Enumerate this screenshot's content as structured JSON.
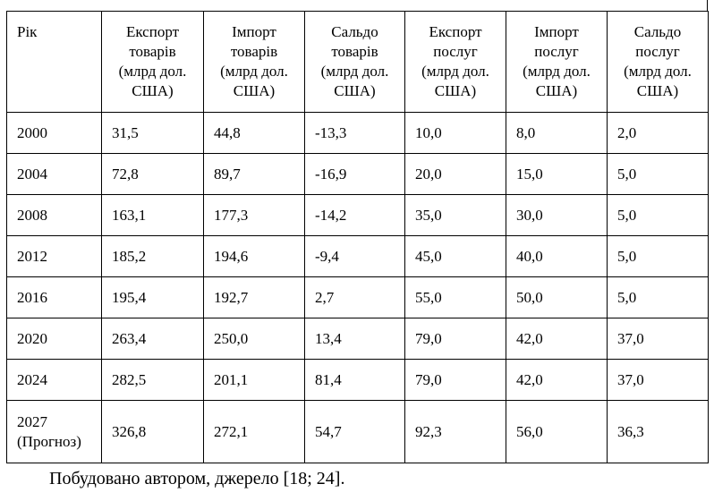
{
  "table": {
    "header": [
      "Рік",
      "Експорт\nтоварів\n(млрд дол.\nСША)",
      "Імпорт\nтоварів\n(млрд дол.\nСША)",
      "Сальдо\nтоварів\n(млрд дол.\nСША)",
      "Експорт\nпослуг\n(млрд дол.\nСША)",
      "Імпорт\nпослуг\n(млрд дол.\nСША)",
      "Сальдо\nпослуг\n(млрд дол.\nСША)"
    ],
    "rows": [
      [
        "2000",
        "31,5",
        "44,8",
        "-13,3",
        "10,0",
        "8,0",
        "2,0"
      ],
      [
        "2004",
        "72,8",
        "89,7",
        "-16,9",
        "20,0",
        "15,0",
        "5,0"
      ],
      [
        "2008",
        "163,1",
        "177,3",
        "-14,2",
        "35,0",
        "30,0",
        "5,0"
      ],
      [
        "2012",
        "185,2",
        "194,6",
        "-9,4",
        "45,0",
        "40,0",
        "5,0"
      ],
      [
        "2016",
        "195,4",
        "192,7",
        "2,7",
        "55,0",
        "50,0",
        "5,0"
      ],
      [
        "2020",
        "263,4",
        "250,0",
        "13,4",
        "79,0",
        "42,0",
        "37,0"
      ],
      [
        "2024",
        "282,5",
        "201,1",
        "81,4",
        "79,0",
        "42,0",
        "37,0"
      ],
      [
        "2027\n(Прогноз)",
        "326,8",
        "272,1",
        "54,7",
        "92,3",
        "56,0",
        "36,3"
      ]
    ]
  },
  "caption": "Побудовано автором, джерело [18; 24]."
}
